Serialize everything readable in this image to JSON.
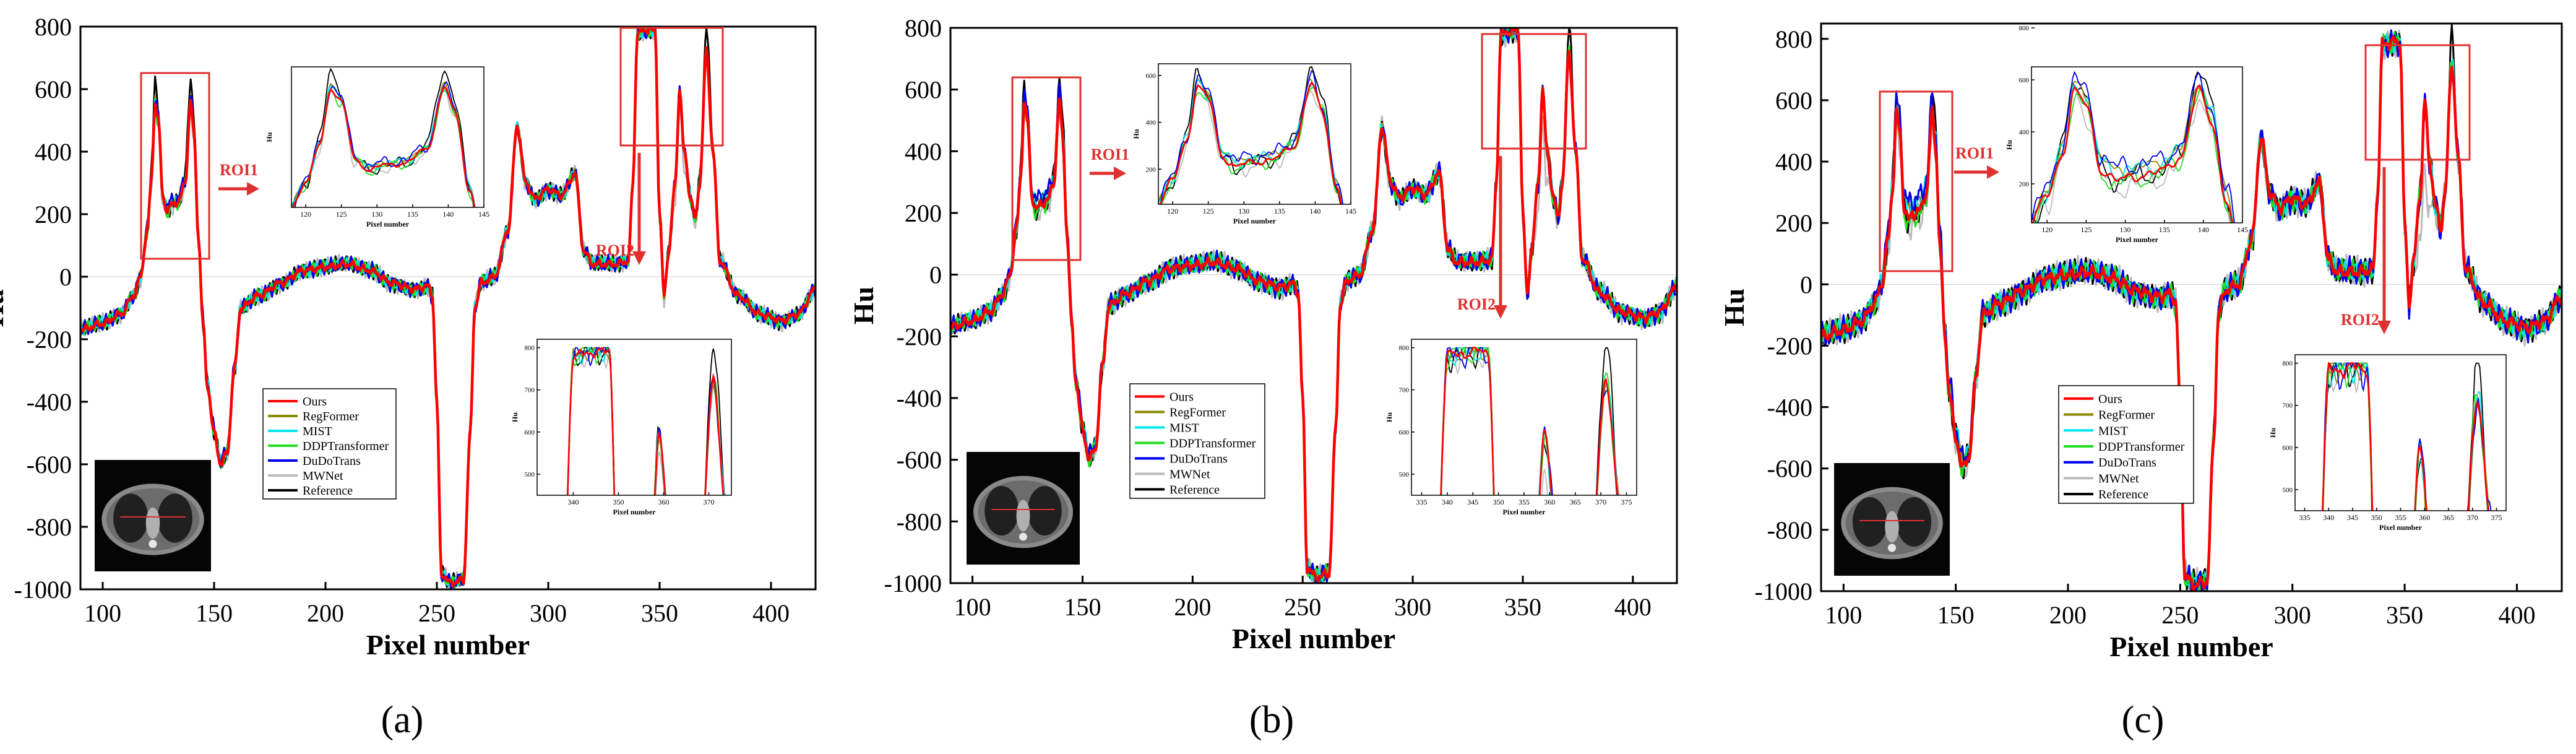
{
  "figure": {
    "panel_letters": [
      "(a)",
      "(b)",
      "(c)"
    ],
    "ct_thumbnail": "lung-ct-slice-image",
    "roi_color": "#e03030"
  },
  "chart_data": [
    {
      "panel": "(a)",
      "type": "line",
      "title": "",
      "xlabel": "Pixel number",
      "ylabel": "Hu",
      "xlim": [
        90,
        420
      ],
      "ylim": [
        -1000,
        800
      ],
      "xticks": [
        100,
        150,
        200,
        250,
        300,
        350,
        400
      ],
      "yticks": [
        -1000,
        -800,
        -600,
        -400,
        -200,
        0,
        200,
        400,
        600,
        800
      ],
      "legend": [
        "Ours",
        "RegFormer",
        "MIST",
        "DDPTransformer",
        "DuDoTrans",
        "MWNet",
        "Reference"
      ],
      "colors": [
        "#ff0000",
        "#8b8b00",
        "#00e5ee",
        "#22dd22",
        "#0000ee",
        "#bbbbbb",
        "#000000"
      ],
      "spread": 0.5,
      "roi1": {
        "label": "ROI1",
        "xrange": [
          118,
          145
        ],
        "yrange": [
          50,
          650
        ],
        "inset_xticks": [
          120,
          125,
          130,
          135,
          140,
          145
        ],
        "inset_xlabel": "Pixel number",
        "inset_ylabel": "Hu",
        "inset_yticks": []
      },
      "roi2": {
        "label": "ROI2",
        "xrange": [
          332,
          375
        ],
        "yrange": [
          450,
          820
        ],
        "inset_xticks": [
          340,
          350,
          360,
          370
        ],
        "inset_xlabel": "Pixel number",
        "inset_ylabel": "Hu",
        "inset_yticks": [
          500,
          600,
          700,
          800
        ]
      }
    },
    {
      "panel": "(b)",
      "type": "line",
      "title": "",
      "xlabel": "Pixel number",
      "ylabel": "Hu",
      "xlim": [
        90,
        420
      ],
      "ylim": [
        -1000,
        800
      ],
      "xticks": [
        100,
        150,
        200,
        250,
        300,
        350,
        400
      ],
      "yticks": [
        -1000,
        -800,
        -600,
        -400,
        -200,
        0,
        200,
        400,
        600,
        800
      ],
      "legend": [
        "Ours",
        "RegFormer",
        "MIST",
        "DDPTransformer",
        "DuDoTrans",
        "MWNet",
        "Reference"
      ],
      "colors": [
        "#ff0000",
        "#8b8b00",
        "#00e5ee",
        "#22dd22",
        "#0000ee",
        "#bbbbbb",
        "#000000"
      ],
      "spread": 1.0,
      "roi1": {
        "label": "ROI1",
        "xrange": [
          118,
          145
        ],
        "yrange": [
          50,
          650
        ],
        "inset_xticks": [
          120,
          125,
          130,
          135,
          140,
          145
        ],
        "inset_xlabel": "Pixel number",
        "inset_ylabel": "Hu",
        "inset_yticks": [
          200,
          400,
          600
        ]
      },
      "roi2": {
        "label": "ROI2",
        "xrange": [
          333,
          377
        ],
        "yrange": [
          450,
          820
        ],
        "inset_xticks": [
          335,
          340,
          345,
          350,
          355,
          360,
          365,
          370,
          375
        ],
        "inset_xlabel": "Pixel number",
        "inset_ylabel": "Hu",
        "inset_yticks": [
          500,
          600,
          700,
          800
        ]
      }
    },
    {
      "panel": "(c)",
      "type": "line",
      "title": "",
      "xlabel": "Pixel number",
      "ylabel": "Hu",
      "xlim": [
        90,
        420
      ],
      "ylim": [
        -1000,
        850
      ],
      "xticks": [
        100,
        150,
        200,
        250,
        300,
        350,
        400
      ],
      "yticks": [
        -1000,
        -800,
        -600,
        -400,
        -200,
        0,
        200,
        400,
        600,
        800
      ],
      "legend": [
        "Ours",
        "RegFormer",
        "MIST",
        "DDPTransformer",
        "DuDoTrans",
        "MWNet",
        "Reference"
      ],
      "colors": [
        "#ff0000",
        "#8b8b00",
        "#00e5ee",
        "#22dd22",
        "#0000ee",
        "#bbbbbb",
        "#000000"
      ],
      "spread": 1.8,
      "roi1": {
        "label": "ROI1",
        "xrange": [
          118,
          145
        ],
        "yrange": [
          50,
          650
        ],
        "inset_xticks": [
          120,
          125,
          130,
          135,
          140,
          145
        ],
        "inset_xlabel": "Pixel number",
        "inset_ylabel": "Hu",
        "inset_yticks": [
          200,
          400,
          600,
          800
        ]
      },
      "roi2": {
        "label": "ROI2",
        "xrange": [
          333,
          377
        ],
        "yrange": [
          450,
          820
        ],
        "inset_xticks": [
          335,
          340,
          345,
          350,
          355,
          360,
          365,
          370,
          375
        ],
        "inset_xlabel": "Pixel number",
        "inset_ylabel": "Hu",
        "inset_yticks": [
          500,
          600,
          700,
          800
        ]
      }
    }
  ]
}
